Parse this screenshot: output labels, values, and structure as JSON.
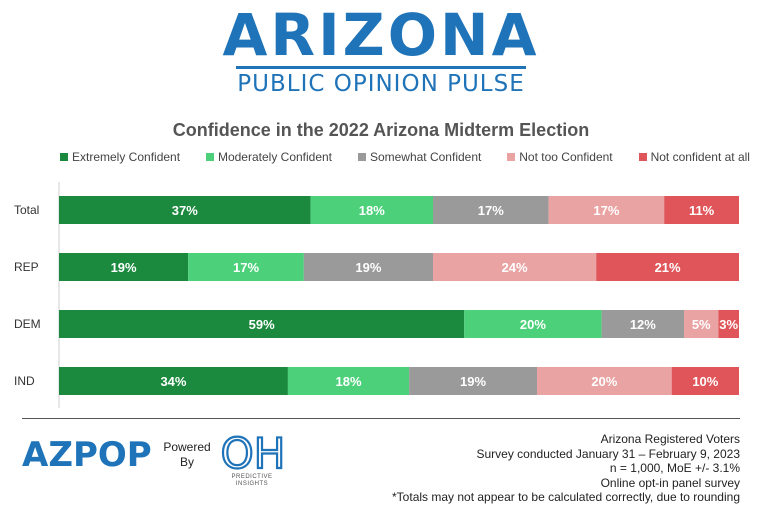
{
  "brand": {
    "title": "ARIZONA",
    "subtitle": "PUBLIC OPINION PULSE"
  },
  "footer": {
    "az_logo": "AZPOP",
    "powered_by": [
      "Powered",
      "By"
    ],
    "oh_logo": "OH",
    "oh_caption": [
      "PREDICTIVE",
      "INSIGHTS"
    ],
    "notes": [
      "Arizona Registered Voters",
      "Survey conducted January 31 – February 9, 2023",
      "n = 1,000, MoE +/- 3.1%",
      "Online opt-in panel survey",
      "*Totals may not appear to be calculated correctly, due to rounding"
    ]
  },
  "colors": {
    "brand_blue": "#1f73b8",
    "series": [
      "#1b8a3e",
      "#4cd17a",
      "#9a9a9a",
      "#eaa3a3",
      "#e0555a"
    ]
  },
  "chart_data": {
    "type": "bar",
    "orientation": "horizontal",
    "stacked": true,
    "title": "Confidence in the 2022 Arizona Midterm Election",
    "categories": [
      "Total",
      "REP",
      "DEM",
      "IND"
    ],
    "series": [
      {
        "name": "Extremely Confident",
        "values": [
          37,
          19,
          59,
          34
        ],
        "labels": [
          "37%",
          "19%",
          "59%",
          "34%"
        ]
      },
      {
        "name": "Moderately Confident",
        "values": [
          18,
          17,
          20,
          18
        ],
        "labels": [
          "18%",
          "17%",
          "20%",
          "18%"
        ]
      },
      {
        "name": "Somewhat Confident",
        "values": [
          17,
          19,
          12,
          19
        ],
        "labels": [
          "17%",
          "19%",
          "12%",
          "19%"
        ]
      },
      {
        "name": "Not too Confident",
        "values": [
          17,
          24,
          5,
          20
        ],
        "labels": [
          "17%",
          "24%",
          "5%",
          "20%"
        ]
      },
      {
        "name": "Not confident at all",
        "values": [
          11,
          21,
          3,
          10
        ],
        "labels": [
          "11%",
          "21%",
          "3%",
          "10%"
        ]
      }
    ],
    "legend": "top",
    "grid": false
  }
}
